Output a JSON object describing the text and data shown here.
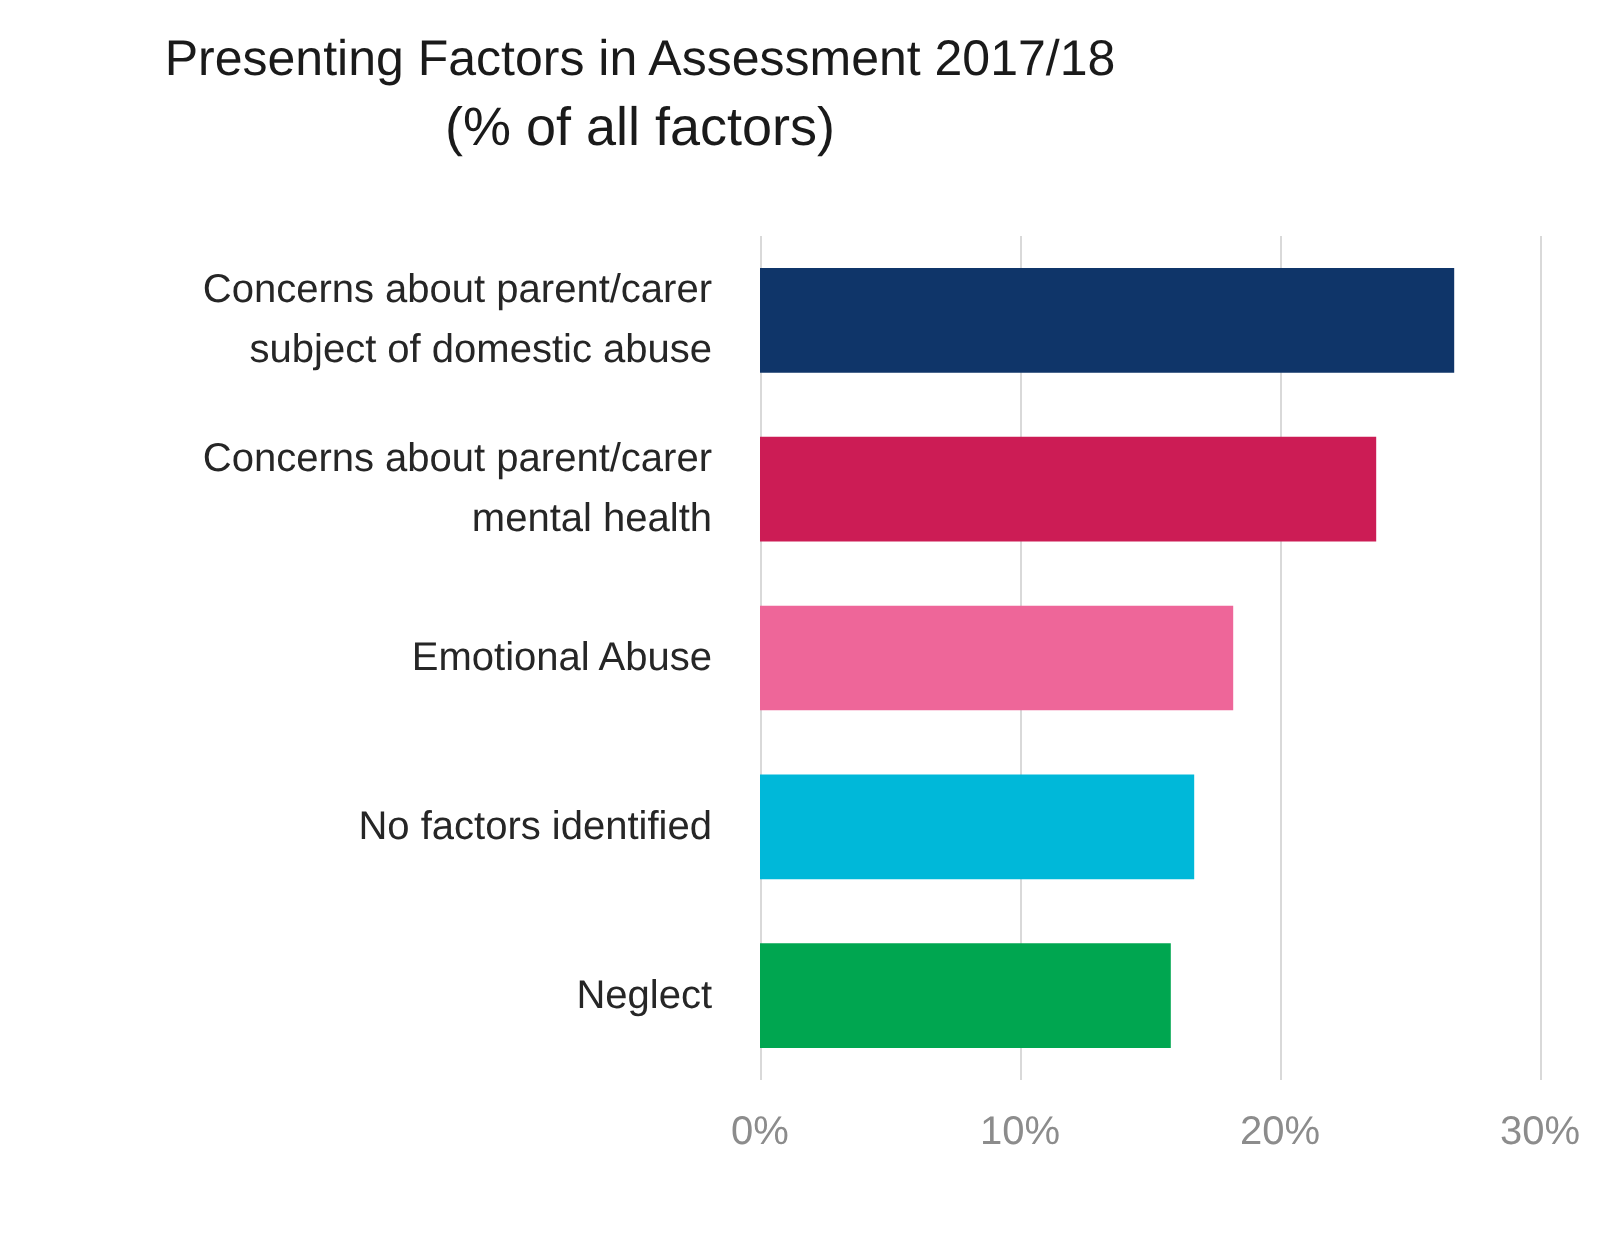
{
  "chart_data": {
    "type": "bar",
    "orientation": "horizontal",
    "title": "Presenting Factors in Assessment 2017/18",
    "subtitle": "(% of all factors)",
    "categories": [
      "Concerns about parent/carer\nsubject of domestic abuse",
      "Concerns about parent/carer\nmental health",
      "Emotional Abuse",
      "No factors identified",
      "Neglect"
    ],
    "values": [
      26.7,
      23.7,
      18.2,
      16.7,
      15.8
    ],
    "colors": [
      "#0f3569",
      "#cc1c55",
      "#ee6699",
      "#00b8d9",
      "#00a650"
    ],
    "xlim": [
      0,
      30
    ],
    "xticks": [
      {
        "value": 0,
        "label": "0%"
      },
      {
        "value": 10,
        "label": "10%"
      },
      {
        "value": 20,
        "label": "20%"
      },
      {
        "value": 30,
        "label": "30%"
      }
    ],
    "grid": "x"
  }
}
